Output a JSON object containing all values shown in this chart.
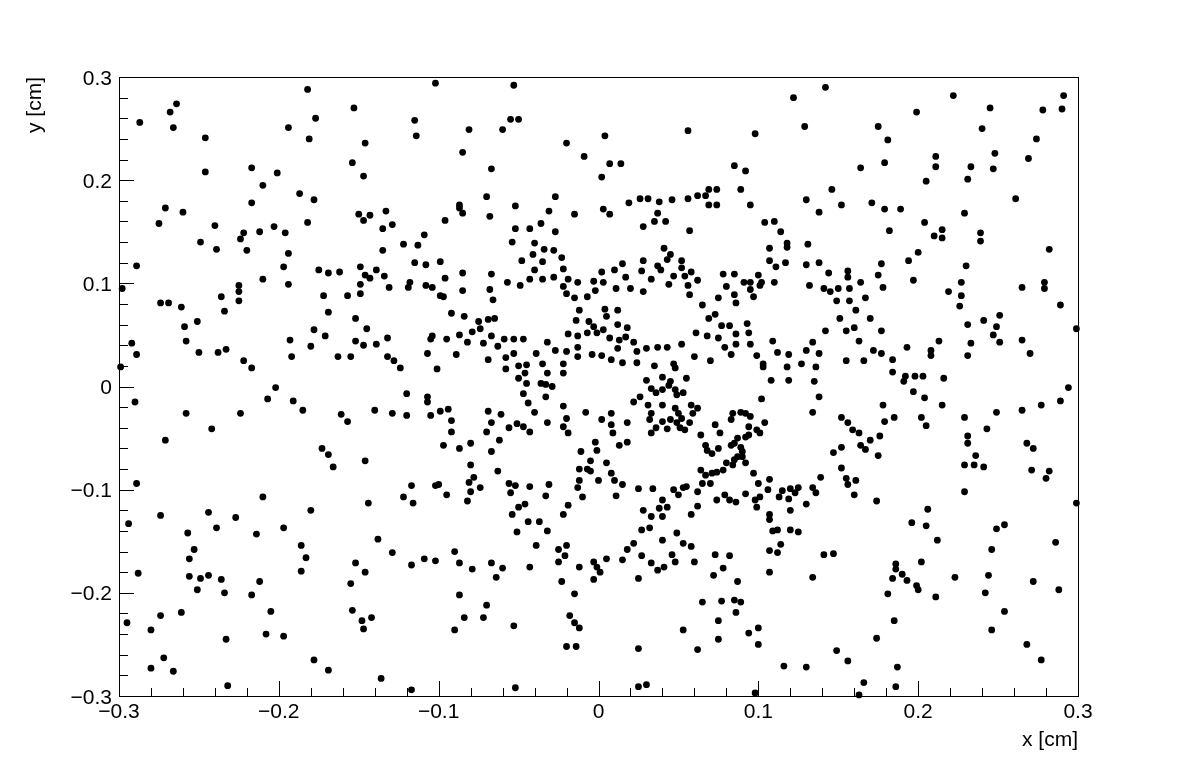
{
  "chart_data": {
    "type": "scatter",
    "xlabel": "x [cm]",
    "ylabel": "y [cm]",
    "color": "#000000",
    "marker": "circle",
    "xlim": [
      -0.3,
      0.3
    ],
    "ylim": [
      -0.3,
      0.3
    ],
    "xticks": [
      {
        "value": -0.3,
        "label": "−0.3"
      },
      {
        "value": -0.28,
        "label": null
      },
      {
        "value": -0.26,
        "label": null
      },
      {
        "value": -0.24,
        "label": null
      },
      {
        "value": -0.22,
        "label": null
      },
      {
        "value": -0.2,
        "label": "−0.2"
      },
      {
        "value": -0.18,
        "label": null
      },
      {
        "value": -0.16,
        "label": null
      },
      {
        "value": -0.14,
        "label": null
      },
      {
        "value": -0.12,
        "label": null
      },
      {
        "value": -0.1,
        "label": "−0.1"
      },
      {
        "value": -0.08,
        "label": null
      },
      {
        "value": -0.06,
        "label": null
      },
      {
        "value": -0.04,
        "label": null
      },
      {
        "value": -0.02,
        "label": null
      },
      0,
      {
        "value": 0.02,
        "label": null
      },
      {
        "value": 0.04,
        "label": null
      },
      {
        "value": 0.06,
        "label": null
      },
      {
        "value": 0.08,
        "label": null
      },
      0.1,
      {
        "value": 0.12,
        "label": null
      },
      {
        "value": 0.14,
        "label": null
      },
      {
        "value": 0.16,
        "label": null
      },
      {
        "value": 0.18,
        "label": null
      },
      0.2,
      {
        "value": 0.22,
        "label": null
      },
      {
        "value": 0.24,
        "label": null
      },
      {
        "value": 0.26,
        "label": null
      },
      {
        "value": 0.28,
        "label": null
      },
      0.3
    ],
    "yticks": [
      {
        "value": -0.3,
        "label": "−0.3"
      },
      {
        "value": -0.28,
        "label": null
      },
      {
        "value": -0.26,
        "label": null
      },
      {
        "value": -0.24,
        "label": null
      },
      {
        "value": -0.22,
        "label": null
      },
      {
        "value": -0.2,
        "label": "−0.2"
      },
      {
        "value": -0.18,
        "label": null
      },
      {
        "value": -0.16,
        "label": null
      },
      {
        "value": -0.14,
        "label": null
      },
      {
        "value": -0.12,
        "label": null
      },
      {
        "value": -0.1,
        "label": "−0.1"
      },
      {
        "value": -0.08,
        "label": null
      },
      {
        "value": -0.06,
        "label": null
      },
      {
        "value": -0.04,
        "label": null
      },
      {
        "value": -0.02,
        "label": null
      },
      0,
      {
        "value": 0.02,
        "label": null
      },
      {
        "value": 0.04,
        "label": null
      },
      {
        "value": 0.06,
        "label": null
      },
      {
        "value": 0.08,
        "label": null
      },
      0.1,
      {
        "value": 0.12,
        "label": null
      },
      {
        "value": 0.14,
        "label": null
      },
      {
        "value": 0.16,
        "label": null
      },
      {
        "value": 0.18,
        "label": null
      },
      0.2,
      {
        "value": 0.22,
        "label": null
      },
      {
        "value": 0.24,
        "label": null
      },
      {
        "value": 0.26,
        "label": null
      },
      {
        "value": 0.28,
        "label": null
      },
      0.3
    ],
    "x": [
      -0.102,
      -0.182,
      -0.264,
      -0.268,
      -0.266,
      -0.287,
      -0.153,
      -0.177,
      -0.194,
      -0.181,
      -0.246,
      -0.115,
      -0.114,
      -0.146,
      -0.154,
      -0.147,
      -0.217,
      -0.201,
      -0.246,
      -0.21,
      -0.187,
      -0.178,
      -0.217,
      -0.271,
      -0.26,
      -0.275,
      -0.24,
      -0.249,
      -0.239,
      -0.224,
      -0.222,
      -0.22,
      -0.212,
      -0.203,
      -0.196,
      -0.194,
      -0.197,
      -0.182,
      -0.15,
      -0.143,
      -0.147,
      -0.133,
      -0.129,
      -0.135,
      -0.135,
      -0.122,
      -0.113,
      -0.109,
      -0.289,
      -0.298,
      -0.274,
      -0.269,
      -0.261,
      -0.259,
      -0.258,
      -0.251,
      -0.292,
      -0.289,
      -0.299,
      -0.25,
      -0.236,
      -0.234,
      -0.238,
      -0.233,
      -0.225,
      -0.225,
      -0.225,
      -0.222,
      -0.217,
      -0.21,
      -0.202,
      -0.194,
      -0.193,
      -0.192,
      -0.18,
      -0.178,
      -0.175,
      -0.169,
      -0.172,
      -0.169,
      -0.171,
      -0.163,
      -0.162,
      -0.157,
      -0.155,
      -0.152,
      -0.149,
      -0.149,
      -0.149,
      -0.146,
      -0.143,
      -0.139,
      -0.134,
      -0.131,
      -0.152,
      -0.145,
      -0.147,
      -0.139,
      -0.132,
      -0.132,
      -0.128,
      -0.124,
      -0.119,
      -0.118,
      -0.115,
      -0.108,
      -0.108,
      -0.104,
      -0.107,
      -0.105,
      -0.101,
      -0.099,
      -0.053,
      -0.055,
      -0.05,
      -0.081,
      -0.06,
      -0.085,
      -0.067,
      -0.02,
      -0.009,
      0.004,
      0.007,
      0.014,
      0.002,
      0.056,
      0.098,
      0.085,
      0.092,
      0.089,
      0.095,
      0.069,
      0.074,
      0.062,
      0.067,
      0.069,
      0.074,
      0.056,
      0.046,
      0.038,
      0.031,
      0.026,
      0.019,
      0.037,
      0.035,
      0.042,
      0.028,
      0.057,
      0.104,
      -0.087,
      -0.087,
      -0.085,
      -0.07,
      -0.068,
      -0.052,
      -0.096,
      -0.031,
      -0.027,
      -0.015,
      0.003,
      0.007,
      -0.052,
      -0.043,
      -0.036,
      -0.027,
      -0.054,
      -0.04,
      -0.034,
      -0.028,
      -0.041,
      -0.023,
      -0.099,
      -0.085,
      -0.096,
      -0.067,
      -0.048,
      -0.04,
      -0.035,
      -0.057,
      -0.049,
      -0.043,
      -0.035,
      -0.028,
      -0.022,
      -0.019,
      -0.013,
      -0.022,
      -0.02,
      -0.015,
      -0.003,
      0.002,
      0.003,
      0.01,
      0.015,
      0.017,
      0.011,
      0.02,
      0.028,
      -0.002,
      -0.007,
      0.028,
      0.027,
      0.033,
      0.037,
      0.041,
      0.045,
      0.043,
      0.039,
      0.044,
      0.047,
      0.052,
      0.052,
      0.054,
      0.056,
      0.058,
      0.062,
      0.057,
      0.078,
      0.085,
      0.08,
      0.091,
      0.095,
      0.1,
      0.101,
      0.095,
      0.075,
      0.085,
      0.086,
      0.097,
      0.065,
      0.069,
      0.073,
      0.077,
      0.082,
      0.093,
      0.068,
      0.075,
      0.086,
      0.094,
      0.095,
      0.061,
      0.079,
      0.086,
      0.083,
      0.099,
      0.103,
      0.07,
      0.06,
      0.052,
      0.043,
      0.037,
      0.03,
      0.022,
      0.024,
      0.024,
      0.035,
      0.047,
      0.048,
      0.04,
      0.045,
      0.03,
      0.055,
      0.018,
      0.012,
      0.013,
      0.017,
      0.012,
      0.007,
      0.003,
      -0.001,
      0.005,
      0.004,
      0.012,
      -0.006,
      -0.003,
      -0.012,
      -0.014,
      -0.004,
      0.002,
      0.008,
      0.015,
      -0.013,
      -0.007,
      -0.019,
      -0.013,
      -0.02,
      -0.022,
      -0.013,
      -0.032,
      -0.027,
      -0.039,
      -0.035,
      -0.032,
      -0.045,
      -0.05,
      -0.053,
      -0.058,
      -0.058,
      -0.05,
      -0.046,
      -0.045,
      -0.036,
      -0.029,
      -0.022,
      -0.059,
      -0.053,
      -0.047,
      -0.063,
      -0.067,
      -0.072,
      -0.082,
      -0.065,
      -0.069,
      -0.075,
      -0.079,
      -0.074,
      -0.087,
      -0.095,
      -0.084,
      -0.092,
      -0.104,
      -0.089,
      -0.069,
      -0.066,
      -0.068,
      -0.097,
      -0.085,
      0.142,
      0.122,
      0.222,
      0.291,
      0.29,
      0.278,
      0.245,
      0.199,
      0.129,
      0.175,
      0.181,
      0.24,
      0.274,
      0.269,
      0.248,
      0.247,
      0.233,
      0.231,
      0.211,
      0.211,
      0.205,
      0.179,
      0.164,
      0.146,
      0.261,
      0.229,
      0.13,
      0.138,
      0.152,
      0.171,
      0.179,
      0.189,
      0.204,
      0.182,
      0.215,
      0.215,
      0.21,
      0.239,
      0.239,
      0.2,
      0.282,
      0.194,
      0.23,
      0.177,
      0.175,
      0.178,
      0.197,
      0.227,
      0.219,
      0.227,
      0.226,
      0.279,
      0.279,
      0.265,
      0.289,
      0.299,
      0.251,
      0.241,
      0.249,
      0.247,
      0.231,
      0.233,
      0.251,
      0.265,
      0.27,
      0.231,
      0.213,
      0.208,
      0.208,
      0.193,
      0.177,
      0.17,
      0.172,
      0.177,
      0.184,
      0.184,
      0.192,
      0.198,
      0.203,
      0.216,
      0.294,
      0.163,
      0.166,
      0.155,
      0.16,
      0.161,
      0.155,
      0.142,
      0.151,
      0.149,
      0.157,
      0.167,
      0.157,
      0.15,
      0.145,
      0.141,
      0.132,
      0.156,
      0.156,
      0.164,
      0.144,
      0.13,
      0.138,
      0.131,
      0.118,
      0.118,
      0.114,
      0.107,
      0.11,
      0.107,
      0.117,
      0.111,
      0.11,
      0.102,
      0.109,
      0.112,
      0.119,
      0.13,
      0.127,
      0.138,
      0.134,
      0.136,
      0.118,
      0.119,
      0.108,
      0.135,
      0.103,
      -0.29,
      -0.207,
      -0.191,
      -0.185,
      -0.258,
      -0.224,
      -0.242,
      -0.271,
      -0.161,
      -0.157,
      -0.14,
      -0.129,
      -0.12,
      -0.12,
      -0.107,
      -0.107,
      -0.105,
      -0.173,
      -0.169,
      -0.166,
      -0.146,
      -0.289,
      -0.21,
      -0.122,
      -0.117,
      -0.102,
      -0.116,
      -0.144,
      -0.244,
      -0.274,
      -0.18,
      -0.227,
      -0.294,
      -0.239,
      -0.197,
      -0.257,
      -0.214,
      -0.138,
      -0.186,
      -0.253,
      -0.129,
      -0.256,
      -0.183,
      -0.109,
      -0.102,
      -0.152,
      -0.117,
      -0.288,
      -0.186,
      -0.146,
      -0.244,
      -0.256,
      -0.249,
      -0.236,
      -0.212,
      -0.155,
      -0.251,
      -0.234,
      -0.217,
      -0.154,
      -0.205,
      -0.261,
      -0.274,
      -0.142,
      -0.148,
      -0.295,
      -0.28,
      -0.147,
      -0.208,
      -0.197,
      -0.233,
      -0.272,
      -0.178,
      -0.28,
      -0.266,
      -0.169,
      -0.136,
      -0.232,
      -0.117,
      -0.099,
      -0.094,
      -0.092,
      -0.092,
      -0.097,
      -0.087,
      -0.08,
      -0.069,
      -0.061,
      -0.067,
      -0.07,
      -0.062,
      -0.067,
      -0.08,
      -0.078,
      -0.081,
      -0.1,
      -0.095,
      -0.08,
      -0.082,
      -0.074,
      -0.063,
      -0.056,
      -0.051,
      -0.047,
      -0.043,
      -0.056,
      -0.055,
      -0.052,
      -0.043,
      -0.05,
      -0.054,
      -0.046,
      -0.044,
      -0.037,
      -0.032,
      -0.051,
      -0.031,
      -0.033,
      -0.039,
      -0.022,
      -0.019,
      -0.047,
      -0.044,
      -0.033,
      -0.04,
      -0.033,
      -0.032,
      -0.022,
      -0.02,
      -0.022,
      -0.019,
      -0.008,
      -0.011,
      -0.005,
      -0.007,
      -0.012,
      -0.012,
      -0.013,
      -0.01,
      0.0,
      -0.002,
      -0.001,
      0.002,
      0.008,
      0.009,
      0.008,
      0.013,
      0.018,
      0.018,
      0.005,
      -0.005,
      0.008,
      0.01,
      0.011,
      0.015,
      0.022,
      0.033,
      0.036,
      0.026,
      0.031,
      0.033,
      0.04,
      0.044,
      0.048,
      0.049,
      0.053,
      0.04,
      0.048,
      0.05,
      0.045,
      0.04,
      0.032,
      0.036,
      0.043,
      0.051,
      0.054,
      0.049,
      0.052,
      0.058,
      0.062,
      0.059,
      0.057,
      0.033,
      0.025,
      0.034,
      0.028,
      0.033,
      0.032,
      0.027,
      0.038,
      0.043,
      0.04,
      0.04,
      0.04,
      0.049,
      0.053,
      0.058,
      0.047,
      0.05,
      0.053,
      0.055,
      0.062,
      0.058,
      0.065,
      0.07,
      0.074,
      0.079,
      0.082,
      0.086,
      0.092,
      0.098,
      0.099,
      0.101,
      0.062,
      0.064,
      0.067,
      0.068,
      0.071,
      0.075,
      0.073,
      0.076,
      0.064,
      0.067,
      0.071,
      0.074,
      0.078,
      0.08,
      0.084,
      0.085,
      0.087,
      0.09,
      0.092,
      0.083,
      0.085,
      0.089,
      0.09,
      0.087,
      0.092,
      0.094,
      0.084,
      0.089,
      0.092,
      0.095,
      0.083,
      0.094,
      0.099,
      0.101,
      0.104,
      0.102,
      0.097,
      0.1,
      0.018,
      0.022,
      0.015,
      0.027,
      0.025,
      0.033,
      0.037,
      0.041,
      0.046,
      0.048,
      0.06,
      0.073,
      0.082,
      0.078,
      0.072,
      0.087,
      0.065,
      0.077,
      0.085,
      0.089,
      0.086,
      0.075,
      0.075,
      0.053,
      0.062,
      0.094,
      0.1,
      0.1,
      0.025,
      0.025,
      0.03,
      0.098,
      -0.052,
      -0.018,
      -0.015,
      -0.012,
      -0.02,
      -0.014,
      -0.015,
      -0.053,
      -0.07,
      -0.072,
      -0.084,
      -0.09,
      -0.087,
      -0.064,
      -0.067,
      -0.06,
      -0.079,
      -0.087,
      -0.09,
      -0.043,
      -0.023,
      -0.025,
      -0.021,
      -0.025,
      -0.02,
      -0.012,
      -0.003,
      -0.001,
      0.001,
      -0.003,
      0.005,
      0.289,
      0.277,
      0.265,
      0.249,
      0.243,
      0.229,
      0.231,
      0.231,
      0.215,
      0.204,
      0.197,
      0.202,
      0.205,
      0.191,
      0.185,
      0.179,
      0.178,
      0.176,
      0.175,
      0.17,
      0.167,
      0.164,
      0.152,
      0.156,
      0.159,
      0.163,
      0.152,
      0.147,
      0.152,
      0.155,
      0.156,
      0.161,
      0.16,
      0.174,
      0.139,
      0.134,
      0.138,
      0.134,
      0.136,
      0.13,
      0.125,
      0.123,
      0.12,
      0.119,
      0.115,
      0.113,
      0.107,
      0.106,
      0.12,
      0.107,
      0.107,
      0.109,
      0.112,
      0.12,
      0.125,
      0.114,
      0.107,
      0.112,
      0.141,
      0.147,
      0.107,
      0.134,
      0.186,
      0.186,
      0.184,
      0.19,
      0.193,
      0.199,
      0.2,
      0.181,
      0.202,
      0.211,
      0.212,
      0.196,
      0.205,
      0.206,
      0.223,
      0.244,
      0.242,
      0.246,
      0.249,
      0.254,
      0.254,
      0.246,
      0.272,
      0.288,
      0.286,
      0.299,
      0.268,
      0.277,
      0.28,
      0.282,
      0.271,
      0.268,
      0.272,
      0.241,
      0.229,
      0.235,
      0.236,
      0.229,
      0.174,
      0.185,
      0.149,
      0.156,
      0.116,
      0.13,
      0.187,
      0.166,
      0.186,
      0.163
    ],
    "values": [
      0.294,
      0.288,
      0.274,
      0.266,
      0.251,
      0.256,
      0.27,
      0.26,
      0.251,
      0.24,
      0.241,
      0.258,
      0.243,
      0.236,
      0.217,
      0.204,
      0.212,
      0.207,
      0.208,
      0.195,
      0.187,
      0.181,
      0.178,
      0.173,
      0.169,
      0.158,
      0.156,
      0.14,
      0.133,
      0.143,
      0.149,
      0.132,
      0.15,
      0.155,
      0.149,
      0.129,
      0.116,
      0.159,
      0.167,
      0.166,
      0.161,
      0.17,
      0.157,
      0.153,
      0.132,
      0.138,
      0.137,
      0.147,
      0.117,
      0.095,
      0.081,
      0.081,
      0.077,
      0.058,
      0.044,
      0.063,
      0.042,
      0.031,
      0.019,
      0.033,
      0.087,
      0.073,
      0.033,
      0.036,
      0.098,
      0.092,
      0.083,
      0.025,
      0.018,
      0.104,
      -0.001,
      0.099,
      0.045,
      0.029,
      0.039,
      0.055,
      0.113,
      0.11,
      0.088,
      0.072,
      0.049,
      0.029,
      0.111,
      0.088,
      0.029,
      0.066,
      0.09,
      0.099,
      0.116,
      0.108,
      0.105,
      0.113,
      0.107,
      0.096,
      0.044,
      0.056,
      0.04,
      0.041,
      0.047,
      0.029,
      0.025,
      0.018,
      0.096,
      0.101,
      0.12,
      0.118,
      0.098,
      0.096,
      0.032,
      0.046,
      0.017,
      0.088,
      0.292,
      0.259,
      0.259,
      0.249,
      0.249,
      0.227,
      0.211,
      0.236,
      0.223,
      0.243,
      0.216,
      0.216,
      0.203,
      0.248,
      0.245,
      0.214,
      0.209,
      0.191,
      0.176,
      0.191,
      0.191,
      0.185,
      0.185,
      0.176,
      0.176,
      0.182,
      0.181,
      0.179,
      0.182,
      0.182,
      0.178,
      0.168,
      0.16,
      0.16,
      0.155,
      0.151,
      0.159,
      0.176,
      0.173,
      0.168,
      0.184,
      0.165,
      0.175,
      0.161,
      0.17,
      0.184,
      0.167,
      0.172,
      0.167,
      0.153,
      0.153,
      0.158,
      0.15,
      0.14,
      0.139,
      0.133,
      0.132,
      0.128,
      0.125,
      0.121,
      0.11,
      0.105,
      0.109,
      0.122,
      0.113,
      0.121,
      0.101,
      0.098,
      0.104,
      0.104,
      0.106,
      0.114,
      0.104,
      0.101,
      0.097,
      0.09,
      0.086,
      0.102,
      0.111,
      0.101,
      0.113,
      0.119,
      0.106,
      0.095,
      0.095,
      0.092,
      0.093,
      0.087,
      0.122,
      0.112,
      0.104,
      0.117,
      0.134,
      0.128,
      0.123,
      0.113,
      0.099,
      0.107,
      0.115,
      0.122,
      0.107,
      0.098,
      0.111,
      0.103,
      0.089,
      0.109,
      0.109,
      0.097,
      0.101,
      0.101,
      0.108,
      0.098,
      0.094,
      0.086,
      0.089,
      0.081,
      0.087,
      0.079,
      0.066,
      0.07,
      0.059,
      0.059,
      0.061,
      0.049,
      0.047,
      0.051,
      0.052,
      0.041,
      0.052,
      0.038,
      0.041,
      0.031,
      0.03,
      0.019,
      0.025,
      0.029,
      0.041,
      0.038,
      0.038,
      0.037,
      0.043,
      0.034,
      0.023,
      0.02,
      0.022,
      0.018,
      0.009,
      0.005,
      0.006,
      0.008,
      0.057,
      0.06,
      0.045,
      0.048,
      0.037,
      0.047,
      0.055,
      0.052,
      0.068,
      0.075,
      0.074,
      0.063,
      0.058,
      0.074,
      0.064,
      0.031,
      0.03,
      0.026,
      0.023,
      0.049,
      0.052,
      0.051,
      0.038,
      0.034,
      0.022,
      0.029,
      0.043,
      0.035,
      0.032,
      0.022,
      0.013,
      0.021,
      0.02,
      0.032,
      0.028,
      0.017,
      0.008,
      0.013,
      0.003,
      0.003,
      0.0,
      0.013,
      0.046,
      0.046,
      0.046,
      0.039,
      0.049,
      0.042,
      0.043,
      0.066,
      0.065,
      0.063,
      0.053,
      0.056,
      0.05,
      0.046,
      0.068,
      0.071,
      0.049,
      0.031,
      0.026,
      0.084,
      0.094,
      0.087,
      0.093,
      0.29,
      0.28,
      0.282,
      0.282,
      0.269,
      0.268,
      0.27,
      0.266,
      0.252,
      0.252,
      0.239,
      0.25,
      0.24,
      0.221,
      0.226,
      0.211,
      0.213,
      0.201,
      0.223,
      0.213,
      0.199,
      0.217,
      0.212,
      0.191,
      0.182,
      0.168,
      0.181,
      0.169,
      0.176,
      0.178,
      0.172,
      0.172,
      0.159,
      0.151,
      0.152,
      0.144,
      0.146,
      0.149,
      0.141,
      0.13,
      0.133,
      0.122,
      0.117,
      0.119,
      0.108,
      0.096,
      0.103,
      0.101,
      0.092,
      0.088,
      0.078,
      0.101,
      0.095,
      0.096,
      0.079,
      0.056,
      0.069,
      0.064,
      0.058,
      0.05,
      0.06,
      0.042,
      0.043,
      0.045,
      0.032,
      0.03,
      0.044,
      0.035,
      0.03,
      0.038,
      0.054,
      0.066,
      0.035,
      0.032,
      0.026,
      0.014,
      0.01,
      0.01,
      0.01,
      0.008,
      -0.001,
      0.044,
      0.025,
      0.025,
      0.057,
      0.074,
      0.054,
      0.054,
      0.066,
      0.083,
      0.083,
      0.086,
      0.095,
      0.095,
      0.092,
      0.095,
      0.098,
      0.106,
      0.112,
      0.101,
      0.11,
      0.118,
      0.12,
      0.138,
      0.139,
      0.135,
      0.15,
      0.134,
      0.16,
      0.122,
      0.12,
      0.116,
      0.101,
      0.101,
      0.044,
      0.033,
      0.031,
      0.035,
      0.022,
      0.032,
      0.043,
      0.019,
      0.019,
      0.006,
      0.006,
      0.005,
      0.022,
      -0.015,
      -0.012,
      -0.014,
      -0.023,
      -0.026,
      -0.026,
      -0.041,
      -0.052,
      -0.027,
      -0.034,
      -0.023,
      -0.026,
      -0.007,
      -0.028,
      -0.01,
      -0.015,
      -0.028,
      -0.06,
      -0.066,
      -0.078,
      -0.072,
      -0.094,
      -0.107,
      -0.107,
      -0.096,
      -0.096,
      -0.113,
      -0.113,
      -0.122,
      -0.125,
      -0.12,
      -0.127,
      -0.133,
      -0.137,
      -0.137,
      -0.142,
      -0.143,
      -0.148,
      -0.154,
      -0.158,
      -0.161,
      -0.167,
      -0.166,
      -0.167,
      -0.169,
      -0.171,
      -0.173,
      -0.181,
      -0.179,
      -0.18,
      -0.183,
      -0.184,
      -0.186,
      -0.187,
      -0.189,
      -0.191,
      -0.197,
      -0.2,
      -0.202,
      -0.217,
      -0.218,
      -0.219,
      -0.222,
      -0.224,
      -0.227,
      -0.229,
      -0.236,
      -0.235,
      -0.24,
      -0.242,
      -0.245,
      -0.263,
      -0.265,
      -0.273,
      -0.276,
      -0.275,
      -0.283,
      -0.29,
      -0.294,
      -0.024,
      -0.022,
      -0.033,
      -0.044,
      -0.057,
      -0.06,
      -0.055,
      -0.024,
      -0.027,
      -0.035,
      -0.044,
      -0.052,
      -0.063,
      -0.076,
      -0.088,
      -0.093,
      -0.095,
      -0.105,
      -0.102,
      -0.111,
      -0.098,
      -0.082,
      -0.04,
      -0.036,
      -0.039,
      -0.044,
      -0.094,
      -0.103,
      -0.096,
      -0.097,
      -0.117,
      -0.124,
      -0.114,
      -0.131,
      -0.131,
      -0.14,
      -0.141,
      -0.095,
      -0.106,
      -0.154,
      -0.124,
      -0.115,
      -0.007,
      -0.016,
      0.002,
      -0.025,
      -0.01,
      -0.035,
      -0.019,
      -0.031,
      -0.039,
      -0.045,
      -0.025,
      -0.063,
      -0.072,
      -0.08,
      -0.08,
      -0.091,
      -0.098,
      -0.107,
      -0.091,
      -0.054,
      -0.062,
      -0.032,
      -0.026,
      -0.045,
      -0.037,
      -0.057,
      -0.035,
      -0.054,
      -0.074,
      -0.082,
      -0.084,
      -0.091,
      -0.106,
      -0.095,
      -0.015,
      -0.002,
      -0.006,
      -0.01,
      -0.018,
      -0.026,
      -0.003,
      0.001,
      -0.003,
      -0.008,
      -0.006,
      -0.018,
      -0.021,
      -0.026,
      -0.032,
      -0.034,
      -0.032,
      -0.04,
      -0.041,
      -0.04,
      -0.042,
      -0.035,
      -0.031,
      -0.018,
      -0.021,
      -0.026,
      -0.035,
      -0.045,
      -0.099,
      -0.099,
      -0.12,
      -0.126,
      -0.137,
      -0.139,
      -0.118,
      -0.117,
      -0.126,
      -0.11,
      -0.149,
      -0.142,
      -0.152,
      -0.155,
      -0.1,
      -0.105,
      -0.098,
      -0.097,
      -0.102,
      -0.124,
      -0.094,
      -0.094,
      -0.11,
      -0.105,
      -0.11,
      -0.112,
      -0.104,
      -0.11,
      -0.117,
      -0.107,
      -0.116,
      -0.047,
      -0.057,
      -0.062,
      -0.065,
      -0.06,
      -0.037,
      -0.045,
      -0.081,
      -0.086,
      -0.084,
      -0.083,
      -0.081,
      -0.074,
      -0.076,
      -0.071,
      -0.068,
      -0.068,
      -0.074,
      -0.057,
      -0.055,
      -0.059,
      -0.063,
      -0.05,
      -0.049,
      -0.047,
      -0.026,
      -0.025,
      -0.026,
      -0.029,
      -0.032,
      -0.039,
      -0.042,
      -0.045,
      -0.035,
      -0.012,
      -0.084,
      -0.094,
      -0.158,
      -0.152,
      -0.168,
      -0.164,
      -0.186,
      -0.171,
      -0.178,
      -0.175,
      -0.163,
      -0.17,
      -0.17,
      -0.163,
      -0.164,
      -0.176,
      -0.183,
      -0.189,
      -0.209,
      -0.208,
      -0.207,
      -0.209,
      -0.219,
      -0.227,
      -0.245,
      -0.236,
      -0.255,
      -0.239,
      -0.234,
      -0.25,
      -0.254,
      -0.291,
      -0.289,
      -0.297,
      -0.292,
      -0.222,
      -0.229,
      -0.234,
      -0.252,
      -0.252,
      -0.201,
      -0.232,
      -0.212,
      -0.224,
      -0.224,
      -0.236,
      -0.202,
      -0.185,
      -0.171,
      -0.176,
      -0.177,
      -0.171,
      -0.16,
      -0.175,
      -0.189,
      -0.17,
      -0.164,
      -0.158,
      -0.154,
      -0.175,
      -0.17,
      -0.175,
      -0.18,
      -0.187,
      -0.167,
      -0.014,
      -0.018,
      -0.023,
      -0.025,
      -0.041,
      -0.03,
      -0.055,
      -0.048,
      -0.018,
      -0.011,
      -0.005,
      -0.03,
      -0.038,
      0.005,
      -0.03,
      -0.034,
      -0.018,
      -0.048,
      -0.067,
      -0.052,
      -0.061,
      -0.057,
      -0.03,
      -0.035,
      -0.042,
      -0.045,
      -0.059,
      -0.064,
      -0.079,
      -0.089,
      -0.095,
      -0.091,
      -0.105,
      -0.111,
      -0.088,
      -0.025,
      -0.01,
      -0.098,
      -0.103,
      -0.114,
      -0.098,
      -0.103,
      -0.099,
      -0.109,
      -0.101,
      -0.107,
      -0.09,
      -0.1,
      -0.12,
      -0.124,
      -0.129,
      -0.14,
      -0.139,
      -0.139,
      -0.141,
      -0.153,
      -0.159,
      -0.161,
      -0.163,
      -0.162,
      -0.18,
      -0.185,
      -0.172,
      -0.177,
      -0.186,
      -0.182,
      -0.188,
      -0.193,
      -0.197,
      -0.201,
      -0.17,
      -0.204,
      -0.149,
      -0.132,
      -0.135,
      -0.119,
      -0.185,
      -0.183,
      -0.2,
      -0.158,
      -0.138,
      -0.134,
      -0.218,
      -0.236,
      -0.189,
      -0.197,
      -0.151,
      -0.113,
      -0.25,
      -0.265,
      -0.089,
      -0.082,
      -0.081,
      -0.055,
      -0.06,
      -0.078,
      -0.076,
      -0.076,
      -0.067,
      -0.102,
      -0.244,
      -0.227,
      -0.256,
      -0.266,
      -0.271,
      -0.272,
      -0.272,
      -0.287,
      -0.291,
      -0.299
    ]
  }
}
